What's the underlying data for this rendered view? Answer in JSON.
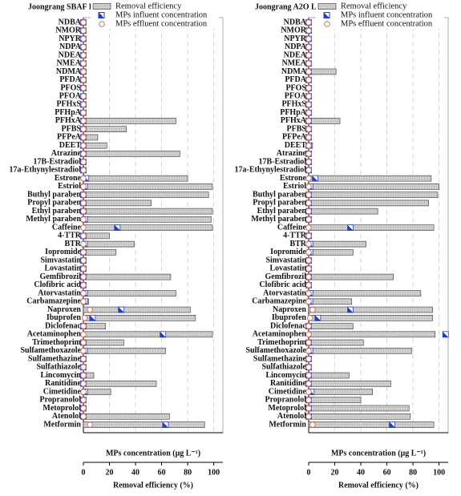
{
  "chart_data": [
    {
      "type": "bar",
      "title": "Joongrang SBAF Line",
      "categories": [
        "NDBA",
        "NMOR",
        "NPYR",
        "NDPA",
        "NDEA",
        "NMEA",
        "NDMA",
        "PFDA",
        "PFOS",
        "PFOA",
        "PFHxS",
        "PFHpA",
        "PFHxA",
        "PFBS",
        "PFPeA",
        "DEET",
        "Atrazine",
        "17B-Estradiol",
        "17a-Ethynylestradiol",
        "Estrone",
        "Estriol",
        "Buthyl paraben",
        "Propyl paraben",
        "Ethyl paraben",
        "Methyl paraben",
        "Caffeine",
        "4-TTR",
        "BTR",
        "Iopromide",
        "Simvastatin",
        "Lovastatin",
        "Gemfibrozil",
        "Clofibric acid",
        "Atorvastatin",
        "Carbamazepine",
        "Naproxen",
        "Ibuprofen",
        "Diclofenac",
        "Acetaminophen",
        "Trimethoprim",
        "Sulfamethoxazole",
        "Sulfamethazine",
        "Sulfathiazole",
        "Lincomycin",
        "Ranitidine",
        "Cimetidine",
        "Propranolol",
        "Metoprolol",
        "Atenolol",
        "Metformin"
      ],
      "series": [
        {
          "name": "Removal efficiency",
          "color": "#c8c8c8",
          "values": [
            0,
            0,
            0,
            0,
            0,
            0,
            0,
            0,
            0,
            0,
            0,
            0,
            71,
            33,
            11,
            18,
            74,
            0,
            0,
            80,
            99,
            96,
            52,
            99,
            98,
            99,
            20,
            39,
            25,
            0,
            0,
            67,
            0,
            71,
            4,
            82,
            86,
            17,
            99,
            31,
            63,
            0,
            0,
            8,
            56,
            21,
            0,
            0,
            66,
            93
          ]
        },
        {
          "name": "MPs influent concentration",
          "color": "#1f3fd0",
          "axis": "x2",
          "values": [
            0,
            0,
            0,
            0,
            0,
            0,
            0,
            0,
            0,
            0,
            0,
            0,
            0,
            0,
            0,
            0,
            0,
            0,
            0,
            2,
            1,
            0,
            0,
            0,
            1,
            26,
            0,
            1,
            0,
            0,
            0,
            0,
            0,
            1,
            1,
            29,
            7,
            0,
            61,
            0,
            1,
            0,
            0,
            0,
            0,
            1,
            0,
            0,
            0,
            63
          ]
        },
        {
          "name": "MPs effluent concentration",
          "color": "#e07050",
          "axis": "x2",
          "values": [
            0,
            0,
            0,
            0,
            0,
            0,
            0,
            0,
            0,
            0,
            0,
            0,
            0,
            0,
            0,
            0,
            0,
            0,
            0,
            0,
            0,
            0,
            0,
            0,
            0,
            0,
            0,
            0,
            0,
            0,
            0,
            0,
            0,
            0,
            0,
            5,
            1,
            0,
            0,
            0,
            0,
            0,
            0,
            0,
            0,
            0,
            0,
            0,
            0,
            5
          ]
        }
      ],
      "xlabel": "Removal efficiency (%)",
      "x2label": "MPs concentration (μg L⁻¹)",
      "xlim": [
        0,
        107
      ],
      "xticks": [
        0,
        20,
        40,
        60,
        80,
        100
      ],
      "x2lim": [
        0,
        107
      ],
      "grid": true
    },
    {
      "type": "bar",
      "title": "Joongrang A2O Line",
      "categories": [
        "NDBA",
        "NMOR",
        "NPYR",
        "NDPA",
        "NDEA",
        "NMEA",
        "NDMA",
        "PFDA",
        "PFOS",
        "PFOA",
        "PFHxS",
        "PFHpA",
        "PFHxA",
        "PFBS",
        "PFPeA",
        "DEET",
        "Atrazine",
        "17B-Estradiol",
        "17a-Ethynylestradiol",
        "Estrone",
        "Estriol",
        "Buthyl paraben",
        "Propyl paraben",
        "Ethyl paraben",
        "Methyl paraben",
        "Caffeine",
        "4-TTR",
        "BTR",
        "Iopromide",
        "Simvastatin",
        "Lovastatin",
        "Gemfibrozil",
        "Clofibric acid",
        "Atorvastatin",
        "Carbamazepine",
        "Naproxen",
        "Ibuprofen",
        "Diclofenac",
        "Acetaminophen",
        "Trimethoprim",
        "Sulfamethoxazole",
        "Sulfamethazine",
        "Sulfathiazole",
        "Lincomycin",
        "Ranitidine",
        "Cimetidine",
        "Propranolol",
        "Metoprolol",
        "Atenolol",
        "Metformin"
      ],
      "series": [
        {
          "name": "Removal efficiency",
          "color": "#c8c8c8",
          "values": [
            0,
            0,
            0,
            0,
            0,
            0,
            21,
            0,
            0,
            0,
            0,
            0,
            24,
            0,
            0,
            3,
            0,
            0,
            0,
            94,
            100,
            99,
            92,
            53,
            0,
            96,
            0,
            44,
            34,
            0,
            0,
            65,
            0,
            86,
            33,
            95,
            95,
            34,
            97,
            42,
            79,
            0,
            0,
            31,
            63,
            49,
            40,
            77,
            78,
            96
          ]
        },
        {
          "name": "MPs influent concentration",
          "color": "#1f3fd0",
          "axis": "x2",
          "values": [
            0,
            0,
            0,
            0,
            0,
            0,
            0,
            0,
            0,
            0,
            0,
            0,
            0,
            0,
            0,
            0,
            0,
            0,
            0,
            5,
            1,
            0,
            0,
            0,
            0,
            32,
            0,
            1,
            1,
            0,
            0,
            0,
            0,
            1,
            1,
            32,
            7,
            0,
            105,
            0,
            1,
            0,
            0,
            0,
            0,
            2,
            0,
            0,
            0,
            64
          ]
        },
        {
          "name": "MPs effluent concentration",
          "color": "#e07050",
          "axis": "x2",
          "values": [
            0,
            0,
            0,
            0,
            0,
            0,
            0,
            0,
            0,
            0,
            0,
            0,
            0,
            0,
            0,
            0,
            0,
            0,
            0,
            0,
            0,
            0,
            0,
            0,
            0,
            0,
            0,
            0,
            0,
            0,
            0,
            0,
            0,
            0,
            0,
            3,
            1,
            0,
            0,
            0,
            0,
            0,
            0,
            0,
            0,
            0,
            0,
            0,
            0,
            3
          ]
        }
      ],
      "xlabel": "Removal efficiency (%)",
      "x2label": "MPs concentration (μg L⁻¹)",
      "xlim": [
        0,
        107
      ],
      "xticks": [
        0,
        20,
        40,
        60,
        80,
        100
      ],
      "x2lim": [
        0,
        107
      ],
      "grid": true
    }
  ]
}
